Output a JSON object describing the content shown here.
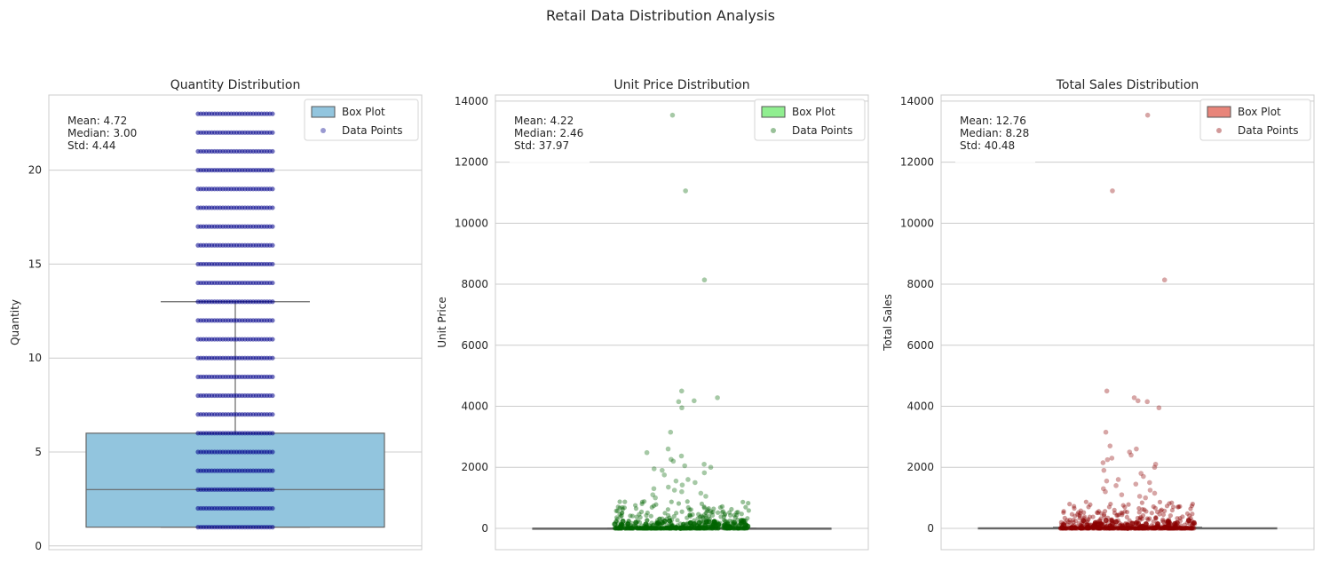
{
  "figure": {
    "title": "Retail Data Distribution Analysis"
  },
  "legend": {
    "box_label": "Box Plot",
    "points_label": "Data Points",
    "placement": "top-right"
  },
  "chart_data": [
    {
      "type": "box",
      "title": "Quantity Distribution",
      "xlabel": "",
      "ylabel": "Quantity",
      "ylim": [
        -0.2,
        24
      ],
      "yticks": [
        0,
        5,
        10,
        15,
        20
      ],
      "grid": true,
      "box_color": "#92c5de",
      "point_color": "#00008b",
      "stats_lines": [
        "Mean: 4.72",
        "Median: 3.00",
        "Std: 4.44"
      ],
      "box": {
        "q1": 1,
        "median": 3,
        "q3": 6,
        "whisker_low": 1,
        "whisker_high": 13
      },
      "points": {
        "discrete_levels": [
          1,
          2,
          3,
          4,
          5,
          6,
          7,
          8,
          9,
          10,
          11,
          12,
          13,
          14,
          15,
          16,
          17,
          18,
          19,
          20,
          21,
          22,
          23
        ]
      }
    },
    {
      "type": "box",
      "title": "Unit Price Distribution",
      "xlabel": "",
      "ylabel": "Unit Price",
      "ylim": [
        -700,
        14200
      ],
      "yticks": [
        0,
        2000,
        4000,
        6000,
        8000,
        10000,
        12000,
        14000
      ],
      "grid": true,
      "box_color": "#90ee90",
      "point_color": "#006400",
      "stats_lines": [
        "Mean: 4.22",
        "Median: 2.46",
        "Std: 37.97"
      ],
      "box": {
        "q1": 1.25,
        "median": 2.46,
        "q3": 4.5,
        "whisker_low": 0,
        "whisker_high": 9
      },
      "points": {
        "outliers": [
          13540,
          11060,
          8140,
          4500,
          4280,
          4180,
          4150,
          3950,
          3150,
          2600,
          2480,
          2370,
          2260,
          2200,
          2100,
          2050,
          2000,
          1950,
          1900,
          1820,
          1750,
          1600,
          1550,
          1500,
          1420,
          1350,
          1300,
          1250,
          1200,
          1150,
          1100,
          1050,
          1000
        ],
        "dense_max": 900
      }
    },
    {
      "type": "box",
      "title": "Total Sales Distribution",
      "xlabel": "",
      "ylabel": "Total Sales",
      "ylim": [
        -700,
        14200
      ],
      "yticks": [
        0,
        2000,
        4000,
        6000,
        8000,
        10000,
        12000,
        14000
      ],
      "grid": true,
      "box_color": "#e8857a",
      "point_color": "#8b0000",
      "stats_lines": [
        "Mean: 12.76",
        "Median: 8.28",
        "Std: 40.48"
      ],
      "box": {
        "q1": 3.5,
        "median": 8.28,
        "q3": 16,
        "whisker_low": 0,
        "whisker_high": 35
      },
      "points": {
        "outliers": [
          13540,
          11060,
          8140,
          4500,
          4280,
          4180,
          4150,
          3950,
          3150,
          2700,
          2600,
          2500,
          2400,
          2300,
          2250,
          2150,
          2100,
          2000,
          1900,
          1800,
          1700,
          1600,
          1550,
          1500,
          1450,
          1400,
          1300,
          1250,
          1200,
          1150,
          1100,
          1050,
          1000
        ],
        "dense_max": 900
      }
    }
  ]
}
